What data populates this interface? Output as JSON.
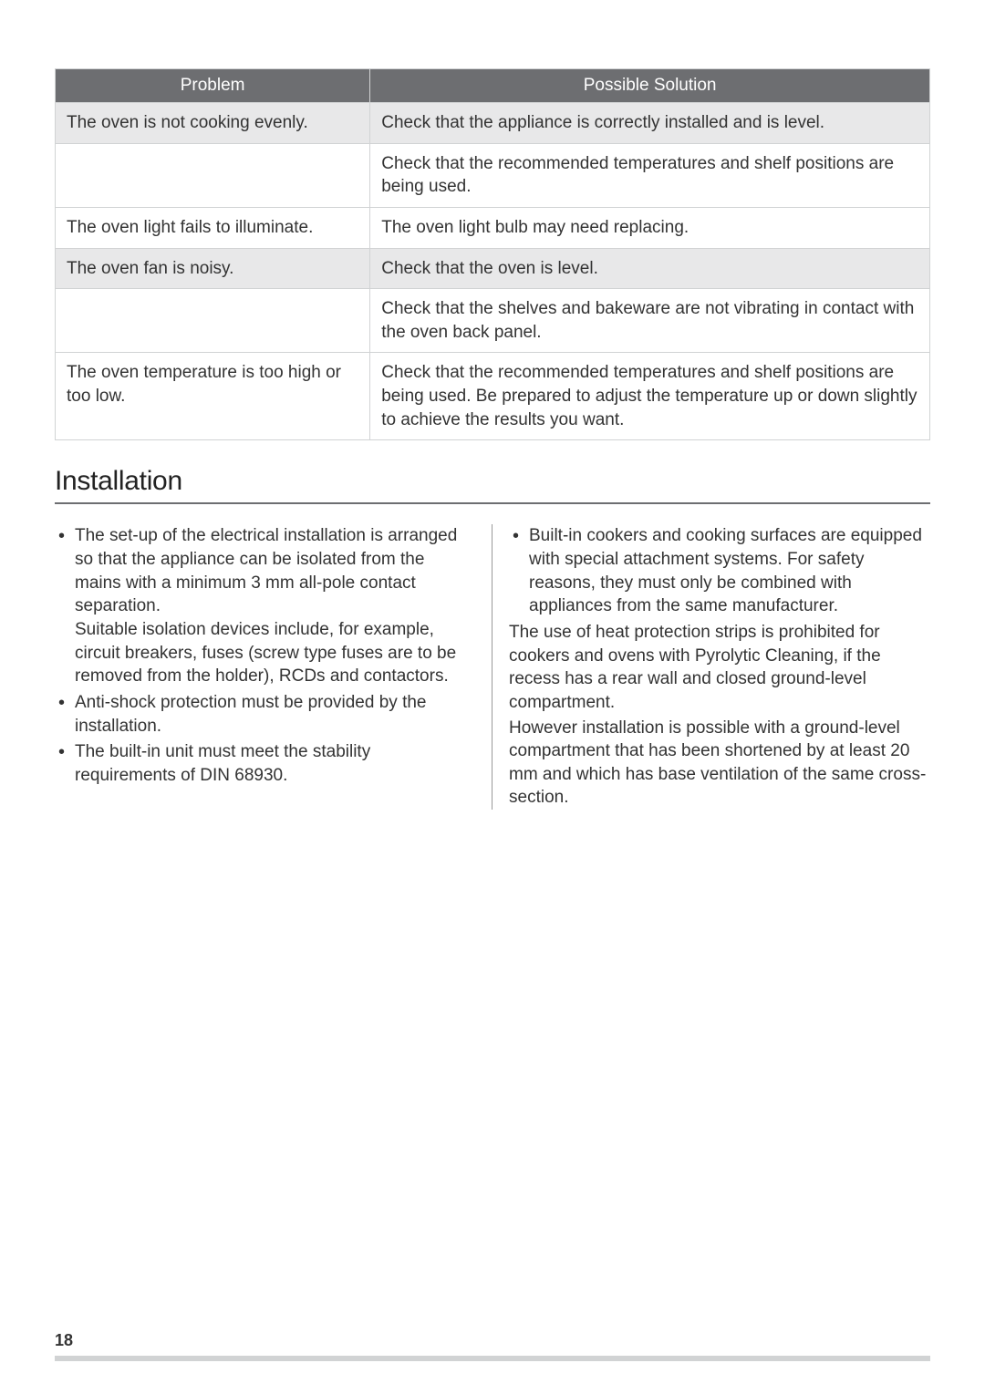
{
  "troubleshooting": {
    "headers": {
      "problem": "Problem",
      "solution": "Possible Solution"
    },
    "rows": [
      {
        "problem": "The oven is not cooking evenly.",
        "solution": "Check that the appliance is correctly installed and is level.",
        "shaded": true
      },
      {
        "problem": "",
        "solution": "Check that the recommended temperatures and shelf positions are being used.",
        "shaded": false
      },
      {
        "problem": "The oven light fails to illuminate.",
        "solution": "The oven light bulb may need replacing.",
        "shaded": false
      },
      {
        "problem": "The oven fan is noisy.",
        "solution": "Check that the oven is level.",
        "shaded": true
      },
      {
        "problem": "",
        "solution": "Check that the shelves and bakeware are not vibrating in contact with the oven back panel.",
        "shaded": false
      },
      {
        "problem": "The oven temperature is too high or too low.",
        "solution": "Check that the recommended temperatures and shelf positions are being used. Be prepared to adjust the temperature up or down slightly to achieve the results you want.",
        "shaded": false
      }
    ]
  },
  "section": {
    "heading": "Installation"
  },
  "left_column": {
    "bullets": [
      "The set-up of the electrical installation is arranged so that the appliance can be isolated from the mains with a minimum 3 mm all-pole contact separation.\nSuitable isolation devices include, for example, circuit breakers, fuses (screw type fuses are to be removed from the holder), RCDs and contactors.",
      "Anti-shock protection must be provided by the installation.",
      "The built-in unit must meet the stability requirements of DIN 68930."
    ]
  },
  "right_column": {
    "bullets": [
      "Built-in cookers and cooking surfaces are equipped with special attachment systems. For safety reasons, they must only be combined with appliances from the same manufacturer."
    ],
    "paragraph1": "The use of heat protection strips is prohibited for cookers and ovens with Pyrolytic Cleaning, if the recess has a rear wall and closed ground-level compartment.",
    "paragraph2": "However installation is possible with a ground-level compartment that has been shortened by at least 20 mm and which has base ventilation of the same cross-section."
  },
  "footer": {
    "page_number": "18"
  },
  "styles": {
    "header_bg": "#6d6e71",
    "header_text": "#ffffff",
    "shaded_bg": "#e8e8e9",
    "border_color": "#d1d3d4",
    "text_color": "#333333",
    "body_fontsize": 19,
    "heading_fontsize": 30
  }
}
